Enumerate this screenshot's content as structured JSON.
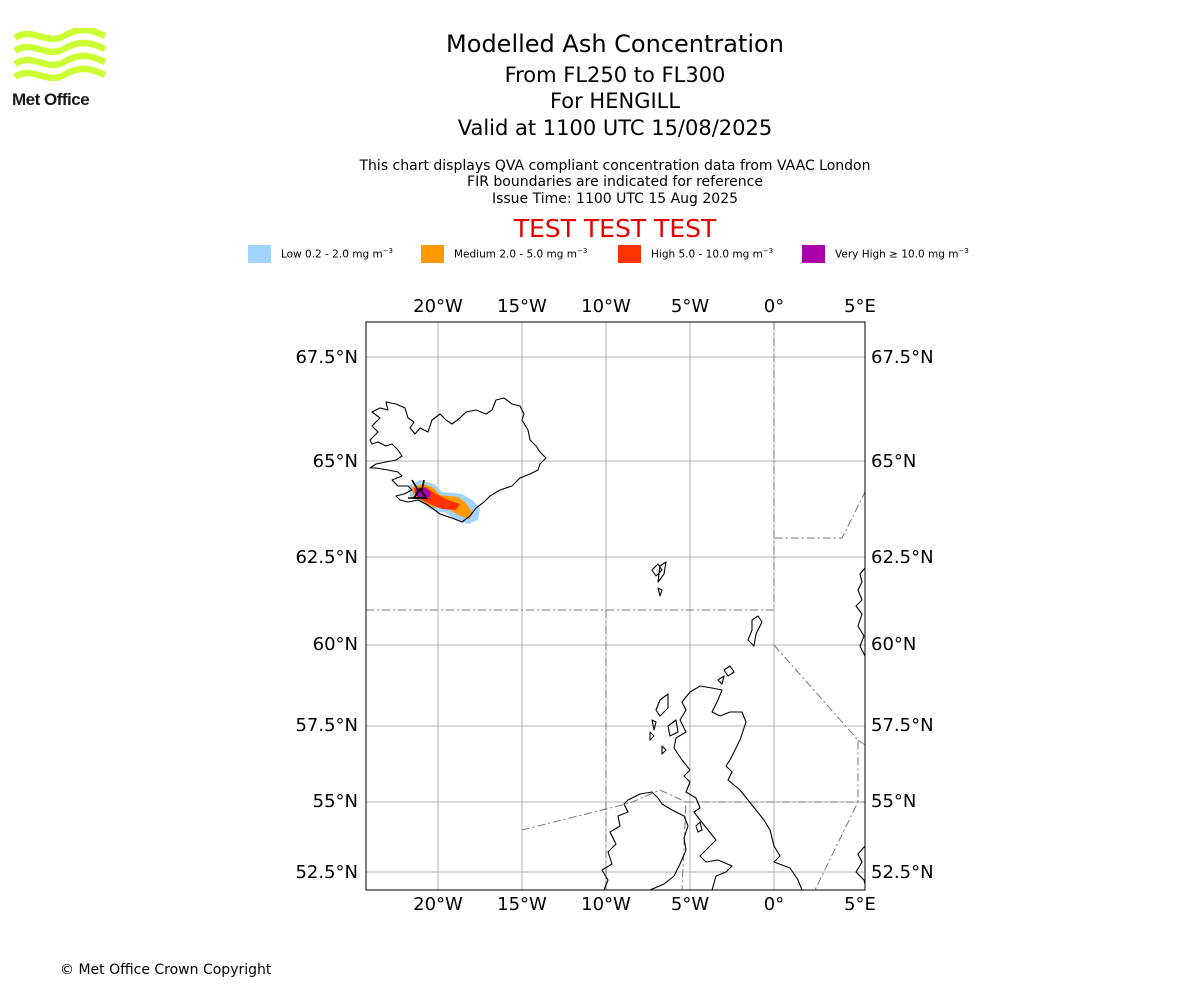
{
  "header": {
    "title": "Modelled Ash Concentration",
    "subtitle_levels": "From FL250 to FL300",
    "subtitle_volcano": "For HENGILL",
    "subtitle_valid": "Valid at 1100 UTC 15/08/2025",
    "info_line1": "This chart displays QVA compliant concentration data from VAAC London",
    "info_line2": "FIR boundaries are indicated for reference",
    "info_line3": "Issue Time: 1100 UTC 15 Aug 2025",
    "banner": "TEST TEST TEST",
    "banner_color": "#e60000"
  },
  "logo": {
    "text": "Met Office",
    "color": "#ccff33",
    "icon": "met-office-waves-logo"
  },
  "legend": [
    {
      "label": "Low 0.2 - 2.0 mg m",
      "unit_exp": "−3",
      "color": "#a0d3ff"
    },
    {
      "label": "Medium 2.0 - 5.0 mg m",
      "unit_exp": "−3",
      "color": "#ff9900"
    },
    {
      "label": "High 5.0 - 10.0 mg m",
      "unit_exp": "−3",
      "color": "#ff3300"
    },
    {
      "label": "Very High ≥ 10.0 mg m",
      "unit_exp": "−3",
      "color": "#aa00aa"
    }
  ],
  "map": {
    "lon_ticks": [
      "20°W",
      "15°W",
      "10°W",
      "5°W",
      "0°",
      "5°E"
    ],
    "lat_ticks": [
      "67.5°N",
      "65°N",
      "62.5°N",
      "60°N",
      "57.5°N",
      "55°N",
      "52.5°N"
    ],
    "volcano_marker": "triangle-icon"
  },
  "footer": {
    "copyright": "© Met Office Crown Copyright"
  }
}
